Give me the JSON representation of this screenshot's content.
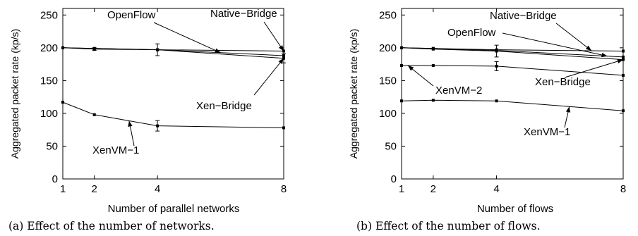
{
  "chart_data": [
    {
      "type": "line",
      "caption": "(a) Effect of the number of networks.",
      "xlabel": "Number of parallel networks",
      "ylabel": "Aggregated packet rate (kp/s)",
      "x_ticks": [
        1,
        2,
        4,
        8
      ],
      "y_ticks": [
        0,
        50,
        100,
        150,
        200,
        250
      ],
      "xlim": [
        1,
        8
      ],
      "ylim": [
        0,
        260
      ],
      "grid": false,
      "legend": "none",
      "series": [
        {
          "name": "Native−Bridge",
          "x": [
            1,
            2,
            4,
            8
          ],
          "y": [
            200,
            199,
            197,
            195
          ],
          "err": [
            0,
            0,
            0,
            0
          ]
        },
        {
          "name": "OpenFlow",
          "x": [
            1,
            2,
            4,
            8
          ],
          "y": [
            200,
            199,
            197,
            188
          ],
          "err": [
            0,
            0,
            0,
            0
          ]
        },
        {
          "name": "Xen−Bridge",
          "x": [
            1,
            2,
            4,
            8
          ],
          "y": [
            200,
            198,
            197,
            184
          ],
          "err": [
            0,
            2,
            9,
            7
          ]
        },
        {
          "name": "XenVM−1",
          "x": [
            1,
            2,
            4,
            8
          ],
          "y": [
            117,
            98,
            81,
            78
          ],
          "err": [
            0,
            0,
            8,
            0
          ]
        }
      ],
      "annotations": [
        {
          "text": "OpenFlow",
          "series": "OpenFlow",
          "at_x": 6
        },
        {
          "text": "Native−Bridge",
          "series": "Native−Bridge",
          "at_x": 8
        },
        {
          "text": "Xen−Bridge",
          "series": "Xen−Bridge",
          "at_x": 8
        },
        {
          "text": "XenVM−1",
          "series": "XenVM−1",
          "at_x": 3.1
        }
      ]
    },
    {
      "type": "line",
      "caption": "(b) Effect of the number of flows.",
      "xlabel": "Number of flows",
      "ylabel": "Aggregated packet rate (kp/s)",
      "x_ticks": [
        1,
        2,
        4,
        8
      ],
      "y_ticks": [
        0,
        50,
        100,
        150,
        200,
        250
      ],
      "xlim": [
        1,
        8
      ],
      "ylim": [
        0,
        260
      ],
      "grid": false,
      "legend": "none",
      "series": [
        {
          "name": "Native−Bridge",
          "x": [
            1,
            2,
            4,
            8
          ],
          "y": [
            200,
            199,
            197,
            195
          ],
          "err": [
            0,
            0,
            0,
            0
          ]
        },
        {
          "name": "OpenFlow",
          "x": [
            1,
            2,
            4,
            8
          ],
          "y": [
            200,
            199,
            196,
            186
          ],
          "err": [
            0,
            0,
            0,
            0
          ]
        },
        {
          "name": "Xen−Bridge",
          "x": [
            1,
            2,
            4,
            8
          ],
          "y": [
            200,
            198,
            195,
            182
          ],
          "err": [
            0,
            0,
            9,
            0
          ]
        },
        {
          "name": "XenVM−2",
          "x": [
            1,
            2,
            4,
            8
          ],
          "y": [
            173,
            173,
            172,
            158
          ],
          "err": [
            0,
            0,
            7,
            0
          ]
        },
        {
          "name": "XenVM−1",
          "x": [
            1,
            2,
            4,
            8
          ],
          "y": [
            119,
            120,
            119,
            104
          ],
          "err": [
            0,
            0,
            0,
            0
          ]
        }
      ],
      "annotations": [
        {
          "text": "Native−Bridge",
          "series": "Native−Bridge",
          "at_x": 7
        },
        {
          "text": "OpenFlow",
          "series": "OpenFlow",
          "at_x": 7.5
        },
        {
          "text": "Xen−Bridge",
          "series": "Xen−Bridge",
          "at_x": 8
        },
        {
          "text": "XenVM−2",
          "series": "XenVM−2",
          "at_x": 1.2
        },
        {
          "text": "XenVM−1",
          "series": "XenVM−1",
          "at_x": 6.3
        }
      ]
    }
  ]
}
